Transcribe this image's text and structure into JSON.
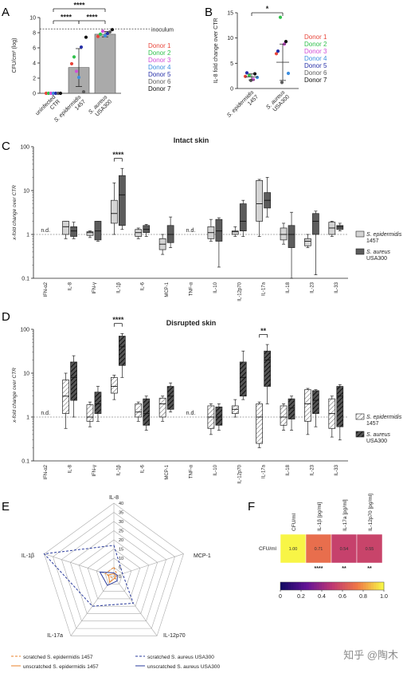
{
  "panel_labels": {
    "A": "A",
    "B": "B",
    "C": "C",
    "D": "D",
    "E": "E",
    "F": "F"
  },
  "watermark": "知乎 @陶木",
  "colors": {
    "donors": [
      "#e8463b",
      "#31c24d",
      "#d14fd6",
      "#3d8ee0",
      "#262fa8",
      "#5b5b5b",
      "#111111"
    ],
    "epi_box": "#d4d4d4",
    "aur_box": "#5c5c5c",
    "bar": "#aaaaaa",
    "radar_epi": "#e8822a",
    "radar_aur": "#2a3b9c"
  },
  "chart_data": [
    {
      "id": "A",
      "type": "bar",
      "ylabel": "CFU/cm² (log)",
      "ylim": [
        0,
        10
      ],
      "yticks": [
        "0",
        "2",
        "4",
        "6",
        "8",
        "10"
      ],
      "categories": [
        "uninfected CTR",
        "S. epidermidis 1457",
        "S. aureus USA300"
      ],
      "categories_lines": [
        [
          "uninfected",
          "CTR"
        ],
        [
          "S. epidermidis",
          "1457"
        ],
        [
          "S. aureus",
          "USA300"
        ]
      ],
      "values": [
        0,
        3.4,
        7.8
      ],
      "errors": [
        0,
        2.5,
        0.35
      ],
      "inoculum_line": 8.5,
      "inoculum_label": "inoculum",
      "points": [
        [
          0,
          0,
          0,
          0,
          0,
          0,
          0
        ],
        [
          3.9,
          4.8,
          2.9,
          2.1,
          6.1,
          0.2,
          7.4
        ],
        [
          7.5,
          7.8,
          8.2,
          7.6,
          7.9,
          8.1,
          8.4
        ]
      ],
      "significance": [
        {
          "from": 0,
          "to": 1,
          "label": "****"
        },
        {
          "from": 1,
          "to": 2,
          "label": "****"
        },
        {
          "from": 0,
          "to": 2,
          "label": "****"
        }
      ],
      "legend": [
        "Donor 1",
        "Donor 2",
        "Donor 3",
        "Donor 4",
        "Donor 5",
        "Donor 6",
        "Donor 7"
      ]
    },
    {
      "id": "B",
      "type": "scatter",
      "ylabel": "IL-8 fold change over CTR",
      "ylim": [
        0,
        15
      ],
      "yticks": [
        "0",
        "5",
        "10",
        "15"
      ],
      "categories": [
        "S. epidermidis 1457",
        "S. aureus USA300"
      ],
      "categories_lines": [
        [
          "S. epidermidis",
          "1457"
        ],
        [
          "S. aureus",
          "USA300"
        ]
      ],
      "points": [
        [
          2.4,
          2.6,
          1.8,
          2.2,
          3.1,
          1.6,
          2.9
        ],
        [
          6.9,
          14.1,
          8.8,
          3.0,
          7.4,
          1.2,
          9.3
        ]
      ],
      "mean": [
        2.3,
        5.2
      ],
      "sd": [
        0.6,
        3.6
      ],
      "significance": [
        {
          "from": 0,
          "to": 1,
          "label": "*"
        }
      ],
      "legend": [
        "Donor 1",
        "Donor 2",
        "Donor 3",
        "Donor 4",
        "Donor 5",
        "Donor 6",
        "Donor 7"
      ]
    },
    {
      "id": "C",
      "type": "box",
      "title": "Intact skin",
      "ylabel": "x-fold change over CTR",
      "yscale": "log",
      "ylim": [
        0.1,
        100
      ],
      "yticks": [
        "0.1",
        "1",
        "10",
        "100"
      ],
      "categories": [
        "IFN-α2",
        "IL-8",
        "IFN-γ",
        "IL-1β",
        "IL-6",
        "MCP-1",
        "TNF-α",
        "IL-10",
        "IL-12p70",
        "IL-17a",
        "IL-18",
        "IL-23",
        "IL-33"
      ],
      "nd_label": "n.d.",
      "nd_index": [
        0,
        6
      ],
      "series": [
        {
          "name": "S. epidermidis 1457",
          "name_lines": [
            "S. epidermidis",
            "1457"
          ],
          "boxes": [
            null,
            [
              0.8,
              1.0,
              1.5,
              2.0,
              2.0
            ],
            [
              0.85,
              0.95,
              1.1,
              1.15,
              1.2
            ],
            [
              1.0,
              1.8,
              3.0,
              6.0,
              15.0
            ],
            [
              0.8,
              0.9,
              1.1,
              1.3,
              1.4
            ],
            [
              0.35,
              0.45,
              0.6,
              0.8,
              1.0
            ],
            null,
            [
              0.7,
              0.8,
              1.1,
              1.5,
              2.2
            ],
            [
              0.9,
              1.0,
              1.15,
              1.2,
              1.5
            ],
            [
              0.9,
              2.0,
              5.0,
              17.0,
              18.0
            ],
            [
              0.6,
              0.75,
              1.0,
              1.4,
              1.8
            ],
            [
              0.5,
              0.55,
              0.7,
              0.8,
              1.0
            ],
            [
              0.9,
              1.0,
              1.4,
              1.9,
              2.0
            ]
          ]
        },
        {
          "name": "S. aureus USA300",
          "name_lines": [
            "S. aureus",
            "USA300"
          ],
          "boxes": [
            null,
            [
              0.8,
              0.9,
              1.2,
              1.5,
              1.9
            ],
            [
              0.7,
              0.75,
              1.2,
              2.0,
              2.0
            ],
            [
              1.3,
              1.6,
              8.0,
              22.0,
              32.0
            ],
            [
              0.9,
              1.1,
              1.3,
              1.6,
              1.7
            ],
            [
              0.5,
              0.65,
              1.0,
              1.6,
              2.5
            ],
            null,
            [
              0.18,
              0.7,
              1.2,
              2.2,
              2.4
            ],
            [
              0.9,
              1.2,
              2.0,
              5.0,
              6.0
            ],
            [
              2.5,
              4.0,
              6.0,
              9.0,
              20.0
            ],
            [
              0.1,
              0.5,
              1.0,
              1.6,
              3.2
            ],
            [
              0.12,
              1.0,
              2.0,
              3.0,
              3.4
            ],
            [
              1.2,
              1.3,
              1.5,
              1.6,
              1.8
            ]
          ]
        }
      ],
      "significance": [
        {
          "index": 3,
          "label": "****"
        }
      ]
    },
    {
      "id": "D",
      "type": "box",
      "title": "Disrupted skin",
      "ylabel": "x-fold change over CTR",
      "yscale": "log",
      "ylim": [
        0.1,
        100
      ],
      "yticks": [
        "0.1",
        "1",
        "10",
        "100"
      ],
      "categories": [
        "IFN-α2",
        "IL-8",
        "IFN-γ",
        "IL-1β",
        "IL-6",
        "MCP-1",
        "TNF-α",
        "IL-10",
        "IL-12p70",
        "IL-17a",
        "IL-18",
        "IL-23",
        "IL-33"
      ],
      "nd_label": "n.d.",
      "nd_index": [
        0,
        6
      ],
      "series": [
        {
          "name": "S. epidermidis 1457",
          "name_lines": [
            "S. epidermidis",
            "1457"
          ],
          "boxes": [
            null,
            [
              0.55,
              1.2,
              3.0,
              7.0,
              10.0
            ],
            [
              0.6,
              0.8,
              1.0,
              1.9,
              2.2
            ],
            [
              2.5,
              3.5,
              5.0,
              8.0,
              9.0
            ],
            [
              0.8,
              1.0,
              1.3,
              2.0,
              2.2
            ],
            [
              0.8,
              1.0,
              2.0,
              2.7,
              3.0
            ],
            null,
            [
              0.4,
              0.55,
              1.0,
              1.8,
              2.0
            ],
            [
              1.0,
              1.2,
              1.5,
              1.8,
              2.5
            ],
            [
              0.2,
              0.25,
              1.0,
              2.0,
              2.2
            ],
            [
              0.5,
              0.65,
              1.0,
              1.8,
              2.0
            ],
            [
              0.4,
              0.8,
              2.0,
              4.2,
              4.5
            ],
            [
              0.35,
              0.55,
              1.2,
              2.6,
              3.0
            ]
          ]
        },
        {
          "name": "S. aureus USA300",
          "name_lines": [
            "S. aureus",
            "USA300"
          ],
          "boxes": [
            null,
            [
              1.0,
              2.4,
              8.0,
              18.0,
              25.0
            ],
            [
              0.8,
              1.2,
              2.0,
              3.7,
              5.0
            ],
            [
              8.0,
              15.0,
              40.0,
              70.0,
              80.0
            ],
            [
              0.5,
              0.65,
              1.2,
              2.6,
              3.0
            ],
            [
              1.3,
              1.5,
              3.0,
              5.0,
              6.0
            ],
            null,
            [
              0.5,
              0.65,
              1.0,
              1.7,
              2.0
            ],
            [
              2.5,
              3.0,
              8.0,
              18.0,
              32.0
            ],
            [
              2.0,
              5.0,
              20.0,
              32.0,
              45.0
            ],
            [
              0.5,
              0.9,
              1.6,
              2.6,
              3.0
            ],
            [
              0.6,
              1.2,
              2.4,
              4.0,
              4.2
            ],
            [
              0.3,
              0.6,
              3.0,
              5.0,
              5.5
            ]
          ]
        }
      ],
      "significance": [
        {
          "index": 3,
          "label": "****"
        },
        {
          "index": 9,
          "label": "**"
        }
      ]
    },
    {
      "id": "E",
      "type": "radar",
      "axes": [
        "IL-8",
        "MCP-1",
        "IL-12p70",
        "IL-17a",
        "IL-1β"
      ],
      "rmax": 40,
      "rticks": [
        "0",
        "5",
        "10",
        "15",
        "20",
        "25",
        "30",
        "35",
        "40"
      ],
      "series": [
        {
          "name": "scratched S. epidermidis 1457",
          "dash": true,
          "color_key": "radar_epi",
          "values": [
            5,
            2,
            1.5,
            1,
            5
          ]
        },
        {
          "name": "unscratched S. epidermidis 1457",
          "dash": false,
          "color_key": "radar_epi",
          "values": [
            1.5,
            1,
            1,
            4,
            3
          ]
        },
        {
          "name": "scratched S. aureus USA300",
          "dash": true,
          "color_key": "radar_aur",
          "values": [
            17,
            5,
            18,
            20,
            40
          ]
        },
        {
          "name": "unscratched S. aureus USA300",
          "dash": false,
          "color_key": "radar_aur",
          "values": [
            2,
            2,
            3,
            6,
            8
          ]
        }
      ]
    },
    {
      "id": "F",
      "type": "heatmap",
      "rows": [
        "CFU/ml"
      ],
      "columns": [
        "CFU/ml",
        "IL-1β [pg/ml]",
        "IL-17a [pg/ml]",
        "IL-12p70 [pg/ml]"
      ],
      "values": [
        [
          1.0,
          0.71,
          0.54,
          0.55
        ]
      ],
      "labels": [
        "1.00",
        "0.71",
        "0.54",
        "0.55"
      ],
      "significance": [
        "",
        "****",
        "**",
        "**"
      ],
      "colorbar_ticks": [
        "0",
        "0.2",
        "0.4",
        "0.6",
        "0.8",
        "1.0"
      ],
      "vmin": 0,
      "vmax": 1
    }
  ]
}
